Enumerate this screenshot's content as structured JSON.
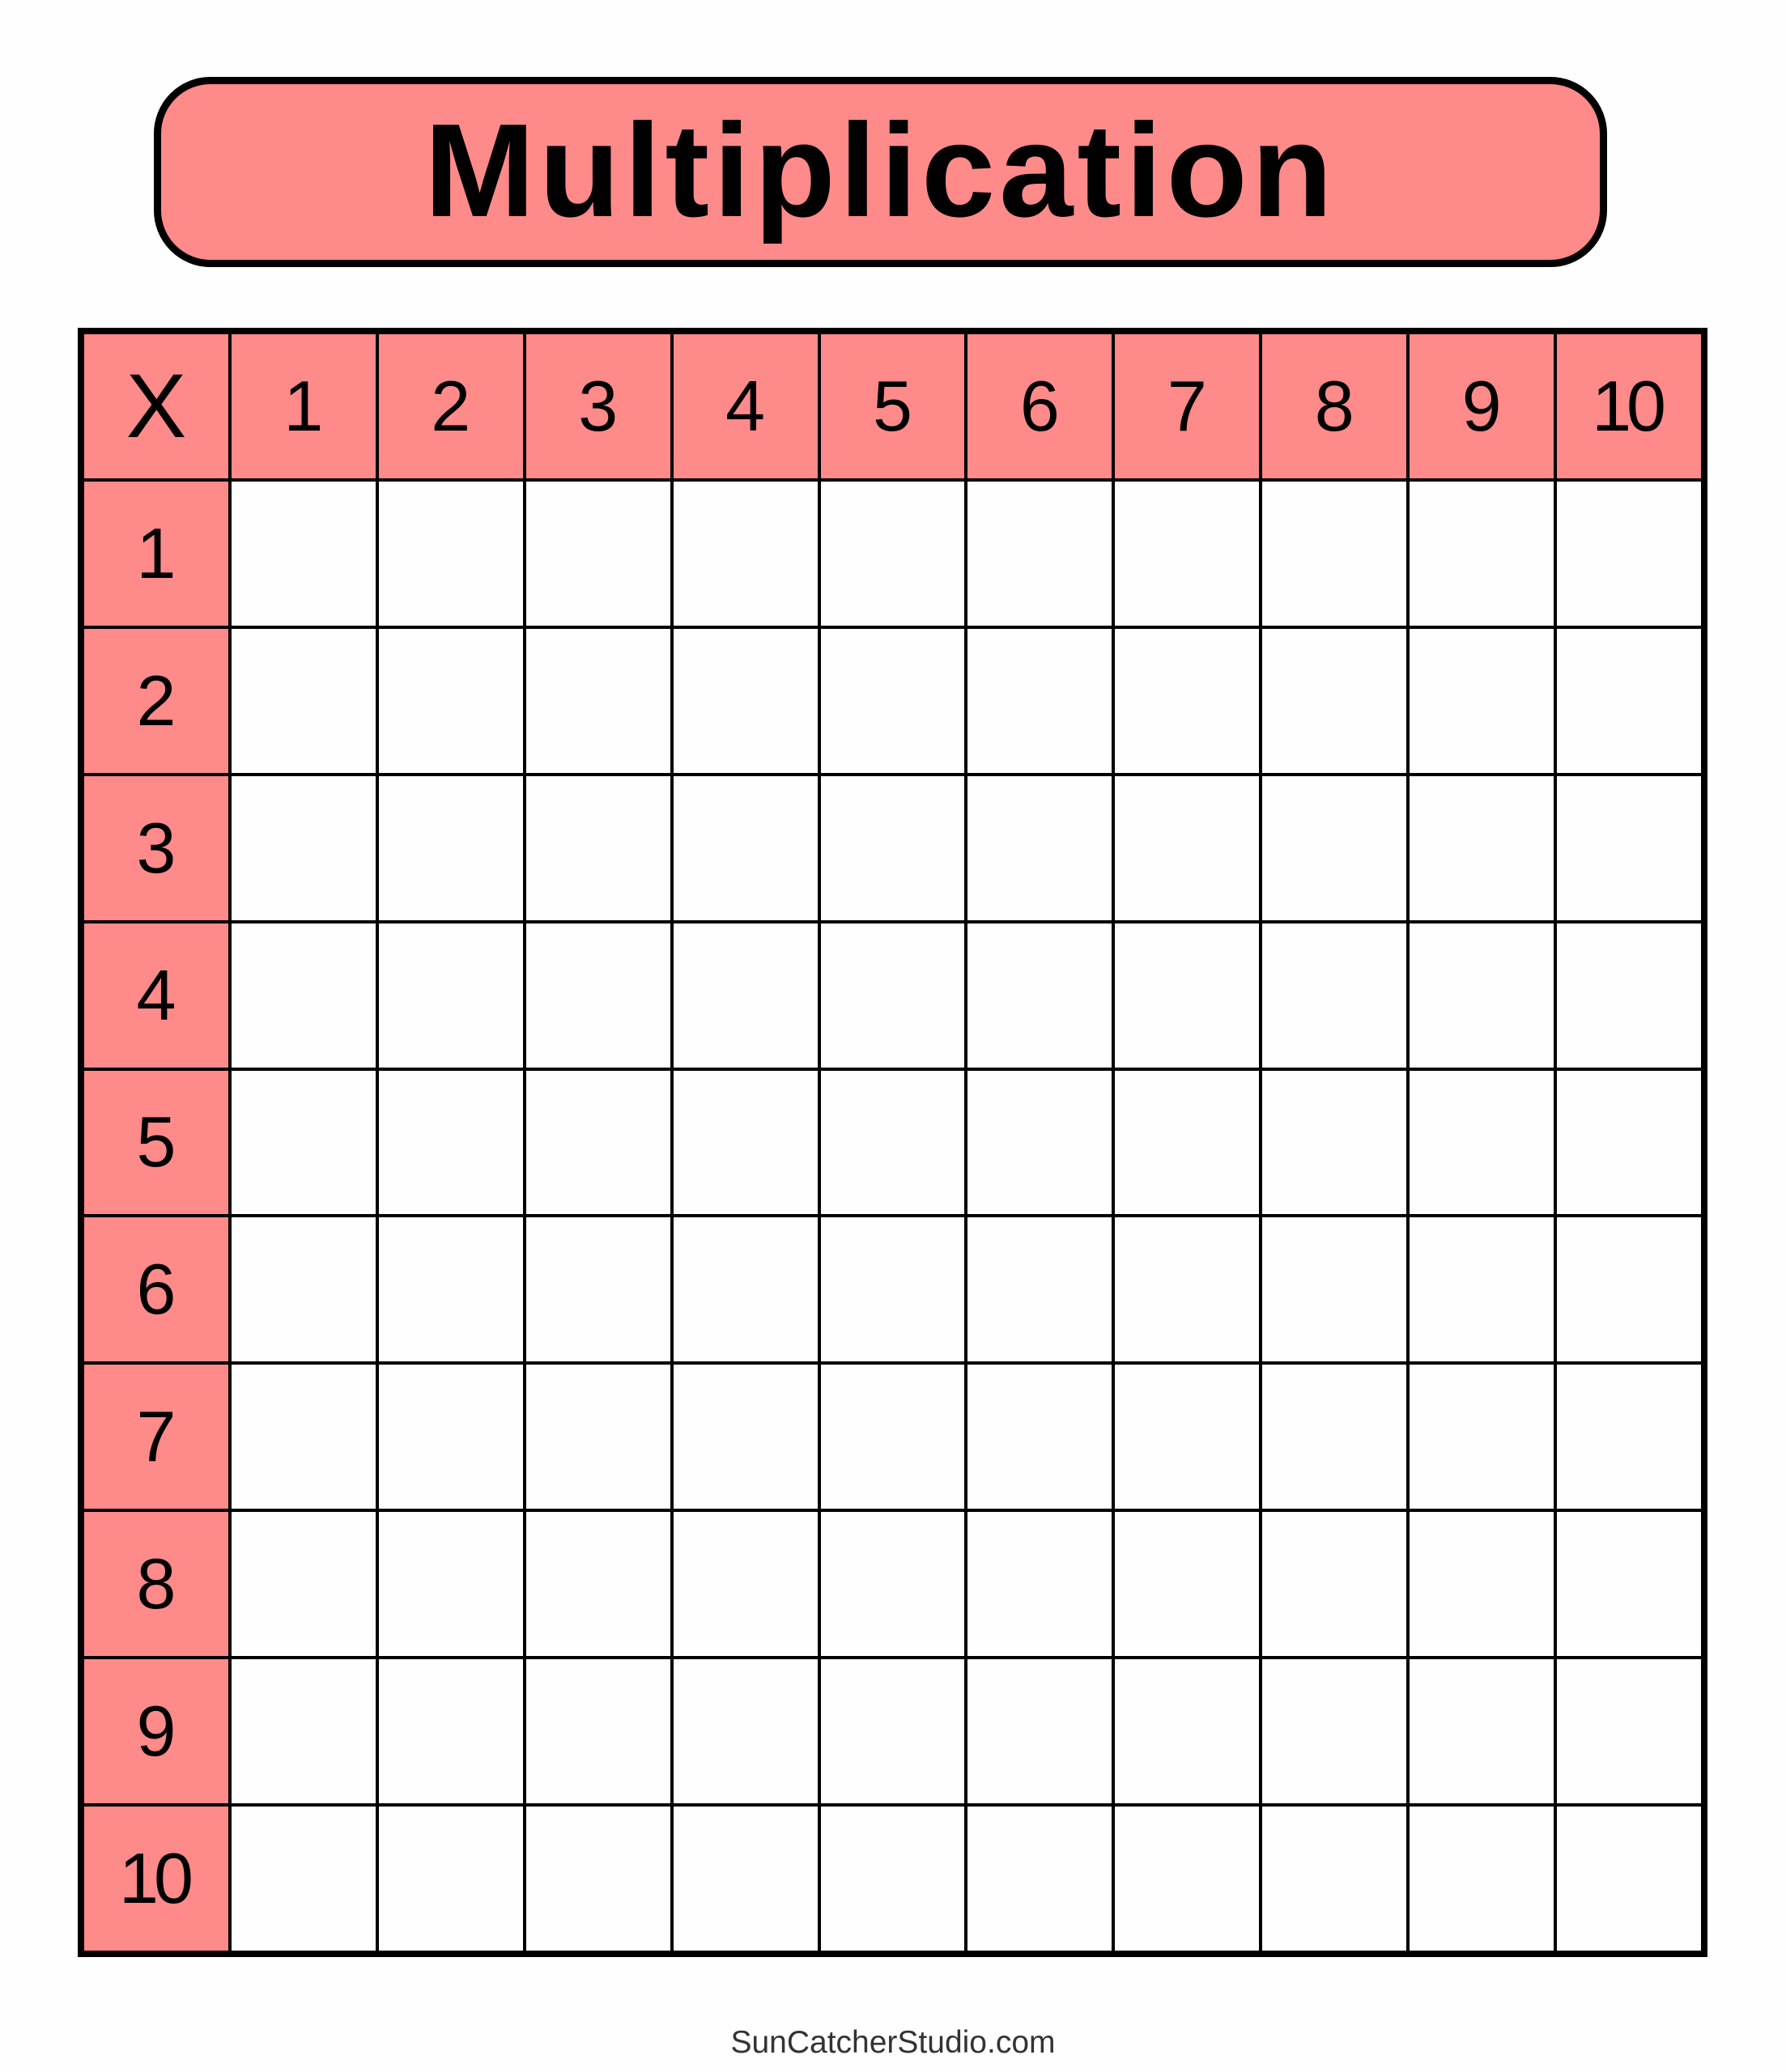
{
  "title": "Multiplication",
  "table": {
    "corner_label": "X",
    "column_headers": [
      "1",
      "2",
      "3",
      "4",
      "5",
      "6",
      "7",
      "8",
      "9",
      "10"
    ],
    "row_headers": [
      "1",
      "2",
      "3",
      "4",
      "5",
      "6",
      "7",
      "8",
      "9",
      "10"
    ],
    "cells": "empty"
  },
  "footer": "SunCatcherStudio.com",
  "colors": {
    "header_fill": "#ff8a8a",
    "lines": "#000000",
    "background": "#fefefe"
  }
}
